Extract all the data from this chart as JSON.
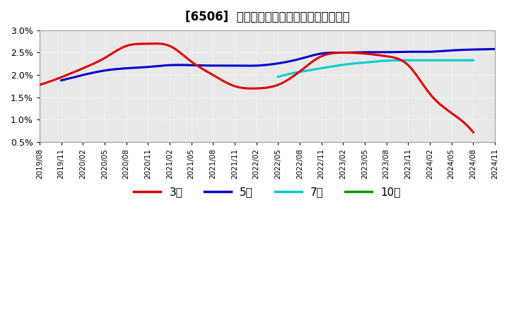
{
  "title": "[6506]  経常利益マージンの標準偏差の推移",
  "title_fontsize": 12,
  "background_color": "#ffffff",
  "plot_bg_color": "#e8e8e8",
  "grid_color": "#ffffff",
  "ylim": [
    0.005,
    0.03
  ],
  "yticks": [
    0.005,
    0.01,
    0.015,
    0.02,
    0.025,
    0.03
  ],
  "ytick_labels": [
    "0.5%",
    "1.0%",
    "1.5%",
    "2.0%",
    "2.5%",
    "3.0%"
  ],
  "legend_labels": [
    "3年",
    "5年",
    "7年",
    "10年"
  ],
  "legend_colors": [
    "#dd0000",
    "#0000cc",
    "#00cccc",
    "#009900"
  ],
  "line_width": 2.2,
  "series_3y": {
    "x": [
      0,
      3,
      6,
      9,
      12,
      15,
      18,
      21,
      24,
      27,
      30,
      33,
      36,
      39,
      42,
      45,
      48,
      51,
      54,
      57,
      60,
      63
    ],
    "values": [
      0.0178,
      0.0195,
      0.0215,
      0.0238,
      0.0265,
      0.027,
      0.0265,
      0.023,
      0.02,
      0.0175,
      0.017,
      0.0178,
      0.0208,
      0.0242,
      0.025,
      0.0248,
      0.0242,
      0.0222,
      0.0158,
      0.0115,
      0.0072,
      null
    ]
  },
  "series_5y": {
    "x": [
      0,
      3,
      6,
      9,
      12,
      15,
      18,
      21,
      24,
      27,
      30,
      33,
      36,
      39,
      42,
      45,
      48,
      51,
      54,
      57,
      60,
      63
    ],
    "values": [
      null,
      0.0188,
      0.02,
      0.021,
      0.0215,
      0.0218,
      0.0222,
      0.0222,
      0.0221,
      0.0221,
      0.0221,
      0.0226,
      0.0236,
      0.0248,
      0.025,
      0.0251,
      0.0251,
      0.0252,
      0.0252,
      0.0255,
      0.0257,
      0.0258
    ]
  },
  "series_7y": {
    "x": [
      0,
      3,
      6,
      9,
      12,
      15,
      18,
      21,
      24,
      27,
      30,
      33,
      36,
      39,
      42,
      45,
      48,
      51,
      54,
      57,
      60,
      63
    ],
    "values": [
      null,
      null,
      null,
      null,
      null,
      null,
      null,
      null,
      null,
      null,
      null,
      0.0196,
      0.0207,
      0.0215,
      0.0223,
      0.0228,
      0.0232,
      0.0233,
      0.0233,
      0.0233,
      0.0233,
      null
    ]
  },
  "series_10y": {
    "x": [
      0,
      3,
      6,
      9,
      12,
      15,
      18,
      21,
      24,
      27,
      30,
      33,
      36,
      39,
      42,
      45,
      48,
      51,
      54,
      57,
      60,
      63
    ],
    "values": [
      null,
      null,
      null,
      null,
      null,
      null,
      null,
      null,
      null,
      null,
      null,
      null,
      null,
      null,
      null,
      null,
      null,
      null,
      null,
      null,
      null,
      null
    ]
  },
  "xtick_labels": [
    "2019/08",
    "2019/11",
    "2020/02",
    "2020/05",
    "2020/08",
    "2020/11",
    "2021/02",
    "2021/05",
    "2021/08",
    "2021/11",
    "2022/02",
    "2022/05",
    "2022/08",
    "2022/11",
    "2023/02",
    "2023/05",
    "2023/08",
    "2023/11",
    "2024/02",
    "2024/05",
    "2024/08",
    "2024/11"
  ]
}
